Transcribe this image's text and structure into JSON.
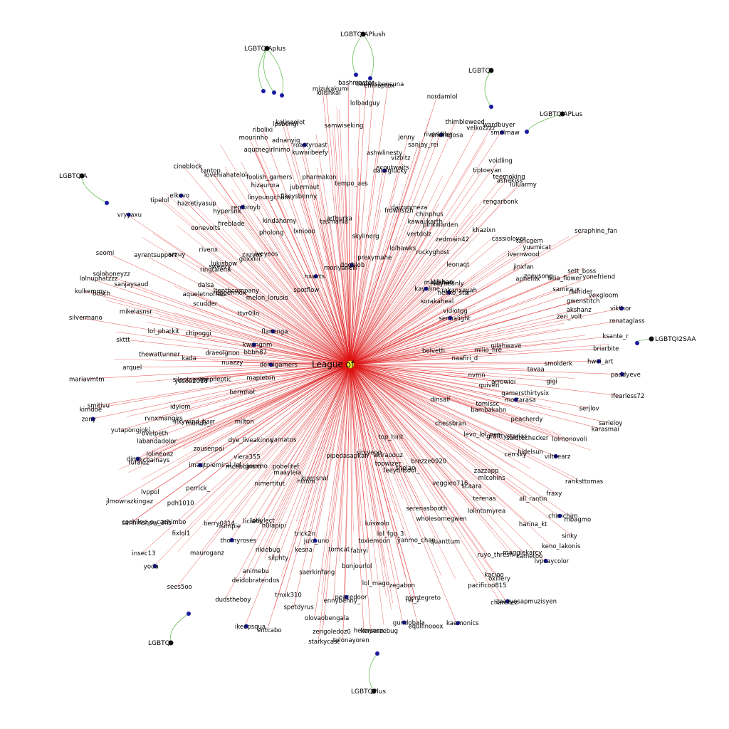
{
  "graph": {
    "edge_color": "#dd1111",
    "hub_edge_color": "#6cbf5a",
    "node_color": "#1a1aa0",
    "hub_node_color": "#111111",
    "center_node_color": "#ffff44",
    "center": {
      "label": "League_of_Legends",
      "visible_fragment": "League of"
    },
    "hubs": [
      "LGBTQIAPlush",
      "LGBTQIAplus",
      "LGBTQI",
      "LGBTQIAPLus",
      "LGBTQIA",
      "LGBTQI2SAA",
      "LGBTQ",
      "LGBTQPlus"
    ],
    "users": [
      "paddyeve",
      "tavaa",
      "nvmn",
      "gigi",
      "arrowioi",
      "ifearless72",
      "quiven",
      "gamersthirtysix",
      "serjlov",
      "mortarasa",
      "sarieloy",
      "karasmai",
      "tomissc",
      "peacherdy",
      "lolmonovoli",
      "bambakahn",
      "dinsalf",
      "saidtechecker",
      "vilteearz",
      "grafttystarias",
      "hidelsun",
      "ranksttomas",
      "cerrsxy",
      "levo_lol_neo",
      "chessbran",
      "fraxy",
      "mbagmo",
      "chimchim",
      "all_rantin",
      "sinky",
      "zazzapp",
      "mlcohins",
      "harina_kt",
      "keno_lakonis",
      "scaara",
      "terenas",
      "lvpcaycolor",
      "kametoo",
      "lolintomyrea",
      "maggiekarcy",
      "veggieo716",
      "brezze0920",
      "ruyo_thresh",
      "oxillery",
      "kacioo",
      "zaazyesapmuzisyen",
      "charchez",
      "pacificoo815",
      "shelao",
      "top_hirit",
      "quanttum",
      "wholesomegwen",
      "serenasbooth",
      "feeyonsoul_",
      "kaemonics",
      "akiraoouz",
      "topwizer",
      "yanmo_chan",
      "rei_z",
      "montegreto",
      "equilinooox",
      "zegabon",
      "lol_fgq_3",
      "gundobala",
      "sirsyeon",
      "luiswolo",
      "lol_mago",
      "toxiemoon",
      "kerserzebug",
      "fabryi",
      "helmyoon",
      "bonjourlol",
      "peacedoor",
      "tulonayoren",
      "tomcat",
      "ennybenny_",
      "zengoledoz0",
      "starkycast",
      "olovaobengala",
      "pipedasapkan",
      "saerkinfang",
      "julo_uno",
      "spetdyrus",
      "kesna",
      "tmxk310",
      "trick2n",
      "entcabo",
      "kuensnal",
      "htrom",
      "silphty",
      "ikeepsqua",
      "rikiebug",
      "h0lapipi",
      "animebu",
      "deidobratendos",
      "dudstheboy",
      "lotlylect",
      "maayleia",
      "liciam",
      "thornyroses",
      "pobelitef",
      "nimertitut",
      "isimpie",
      "sees5oo",
      "mauroganz",
      "berry0314",
      "yamatos",
      "goncho",
      "yoda",
      "fixlol1",
      "insec13",
      "mcobbinsm",
      "viera355",
      "perrick_",
      "pdh1010",
      "sanninshow_3hs",
      "cochilou_o_cachimbo",
      "imaqtpiemiral_lol",
      "dye_liveakinnu",
      "lvppol",
      "jlmowrazkingaz",
      "zousenpai",
      "milton",
      "chainays",
      "rufaiuz",
      "lolineoaz",
      "dimo",
      "labandadolor",
      "mondo_r",
      "ovelpeth",
      "lilkywind_harr",
      "yutapongjoki",
      "rvnxmangirs",
      "idyiom",
      "bermhot",
      "zony",
      "kimdoe",
      "smitivu",
      "mapleton",
      "yesoo2016",
      "anepileptic",
      "silentsentry",
      "mariavmtm",
      "arquel",
      "demigamers",
      "nuazzy",
      "kada",
      "thewattunner",
      "draeolgnon",
      "skttt",
      "bbbh87",
      "lol_pharkit",
      "silvermano",
      "kwangnm",
      "chipoggi",
      "mikelasnsr",
      "bosch",
      "kulkemmy",
      "lolnuphatzzz",
      "sanjaysaud",
      "solohoneyzz",
      "scudder",
      "flaminga",
      "aqueletnofred",
      "seomi",
      "ttvr0lln",
      "ayrentsupport",
      "eggermox",
      "dalsa",
      "ltenthcompany",
      "azzuy",
      "vryyaxu",
      "ringtalena",
      "melon_lorusio",
      "sweezy",
      "lukishow",
      "rivenx",
      "tipelol",
      "oonevolts",
      "hazretiyasup",
      "elkevo",
      "goxxiiii",
      "zazyes",
      "fireblade",
      "cinoblock",
      "hypersnk",
      "iveyeos",
      "loveniahatelol",
      "tantop",
      "rembroyb",
      "spotflow",
      "pholong",
      "linyoungchain",
      "kindahorny",
      "hizaurora",
      "foolish_gamers",
      "mourinho",
      "aqutnegirlnimo",
      "hxwrts",
      "ribolixi",
      "lxniooo",
      "fikeysbenny",
      "adnanyiq",
      "jubernaut",
      "lpsbengi",
      "kalinaolot",
      "kuwaiibeefy",
      "roastyroast",
      "pharmakon",
      "moriyanelli",
      "tasmania",
      "mizukakumi",
      "arthurka",
      "lolishkal",
      "samwiseking",
      "tempo_aes",
      "dogblob",
      "bashmaster",
      "lolbadguy",
      "daniels",
      "skylinerg",
      "emiroptox",
      "bensuna",
      "ashwlinesty",
      "prexymahe",
      "dalaiglucky",
      "scoutwaits",
      "vizbitz",
      "jenny",
      "frownsizh",
      "sanjay_rei",
      "nordamlol",
      "daizonmeza",
      "riverkiller",
      "sindragosa",
      "thimbleweed",
      "lolhawks",
      "kawaiikarth",
      "chinphus",
      "vertdolz",
      "velkozzzz",
      "wardbuyer",
      "pinkwarden",
      "smolmaw",
      "rockyghost",
      "tiptoeyan",
      "voidling",
      "zedmain42",
      "teemoking",
      "ashekiss",
      "rengarbonk",
      "luluarmy",
      "kaynline",
      "khazixn",
      "malzaharr",
      "leonaqt",
      "lolkhan",
      "vayneonly",
      "cassiolover",
      "sorakaheal",
      "rakanxayah",
      "neeko_star",
      "taricgem",
      "ivernwood",
      "yuumicat",
      "seraphine_fan",
      "jinxfan",
      "vidiotgg",
      "zoeysong",
      "aphelitx",
      "sennalight",
      "lillia_flower",
      "sett_boss",
      "yonefriend",
      "samira_x",
      "rellrider",
      "gwenstitch",
      "vexgloom",
      "akshanz",
      "vikthor",
      "zeri_volt",
      "renataglass",
      "belveth",
      "nilahwave",
      "ksante_r",
      "milio_fire",
      "naafiri_d",
      "briarbite",
      "hwei_art",
      "smolderk"
    ]
  }
}
